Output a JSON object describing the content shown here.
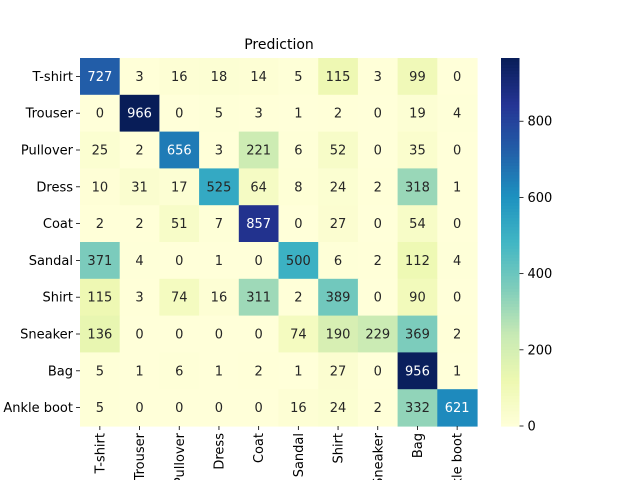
{
  "chart_data": {
    "type": "heatmap",
    "title": "Prediction",
    "xlabel": "",
    "ylabel": "",
    "row_labels": [
      "T-shirt",
      "Trouser",
      "Pullover",
      "Dress",
      "Coat",
      "Sandal",
      "Shirt",
      "Sneaker",
      "Bag",
      "Ankle boot"
    ],
    "col_labels": [
      "T-shirt",
      "Trouser",
      "Pullover",
      "Dress",
      "Coat",
      "Sandal",
      "Shirt",
      "Sneaker",
      "Bag",
      "Ankle boot"
    ],
    "values": [
      [
        727,
        3,
        16,
        18,
        14,
        5,
        115,
        3,
        99,
        0
      ],
      [
        0,
        966,
        0,
        5,
        3,
        1,
        2,
        0,
        19,
        4
      ],
      [
        25,
        2,
        656,
        3,
        221,
        6,
        52,
        0,
        35,
        0
      ],
      [
        10,
        31,
        17,
        525,
        64,
        8,
        24,
        2,
        318,
        1
      ],
      [
        2,
        2,
        51,
        7,
        857,
        0,
        27,
        0,
        54,
        0
      ],
      [
        371,
        4,
        0,
        1,
        0,
        500,
        6,
        2,
        112,
        4
      ],
      [
        115,
        3,
        74,
        16,
        311,
        2,
        389,
        0,
        90,
        0
      ],
      [
        136,
        0,
        0,
        0,
        0,
        74,
        190,
        229,
        369,
        2
      ],
      [
        5,
        1,
        6,
        1,
        2,
        1,
        27,
        0,
        956,
        1
      ],
      [
        5,
        0,
        0,
        0,
        0,
        16,
        24,
        2,
        332,
        621
      ]
    ],
    "colormap": "YlGnBu",
    "vmin": 0,
    "vmax": 966,
    "colorbar_ticks": [
      0,
      200,
      400,
      600,
      800
    ]
  }
}
